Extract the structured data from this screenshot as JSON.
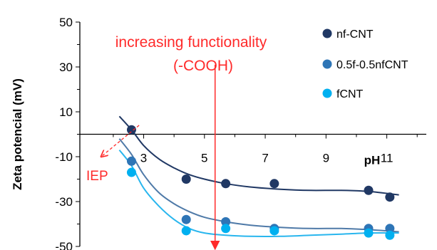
{
  "chart_data": {
    "type": "scatter",
    "ylabel": "Zeta potencial (mV)",
    "xlabel": "pH",
    "xlim": [
      0.9,
      12.3
    ],
    "ylim": [
      -50,
      50
    ],
    "x_axis_crosses_y_at": 0,
    "x_ticks": [
      3,
      5,
      7,
      9,
      11
    ],
    "y_ticks": [
      50,
      30,
      10,
      -10,
      -30,
      -50
    ],
    "grid": false,
    "legend_position": "top-right",
    "series": [
      {
        "name": "nf-CNT",
        "color": "#203864",
        "points": [
          [
            2.6,
            2
          ],
          [
            4.4,
            -20
          ],
          [
            5.7,
            -22
          ],
          [
            7.3,
            -22
          ],
          [
            10.4,
            -25
          ],
          [
            11.1,
            -28
          ]
        ],
        "trend": [
          [
            2.2,
            8
          ],
          [
            2.6,
            2
          ],
          [
            3.0,
            -5
          ],
          [
            3.5,
            -11
          ],
          [
            4.0,
            -15
          ],
          [
            4.5,
            -18
          ],
          [
            5.0,
            -20
          ],
          [
            5.7,
            -22
          ],
          [
            6.5,
            -23.5
          ],
          [
            7.5,
            -24.5
          ],
          [
            8.5,
            -25
          ],
          [
            9.5,
            -25
          ],
          [
            10.4,
            -25.5
          ],
          [
            11.4,
            -27
          ]
        ]
      },
      {
        "name": "0.5f-0.5nfCNT",
        "color": "#2e75b6",
        "points": [
          [
            2.6,
            -12
          ],
          [
            4.4,
            -38
          ],
          [
            5.7,
            -39
          ],
          [
            7.3,
            -42
          ],
          [
            10.4,
            -42
          ],
          [
            11.1,
            -42
          ]
        ],
        "trend": [
          [
            2.2,
            -2
          ],
          [
            2.6,
            -9
          ],
          [
            3.0,
            -18
          ],
          [
            3.5,
            -26
          ],
          [
            4.0,
            -31
          ],
          [
            4.5,
            -34.5
          ],
          [
            5.0,
            -37
          ],
          [
            5.7,
            -39
          ],
          [
            6.5,
            -40.5
          ],
          [
            7.5,
            -41.5
          ],
          [
            8.5,
            -42
          ],
          [
            9.5,
            -42
          ],
          [
            10.4,
            -42.5
          ],
          [
            11.4,
            -43.5
          ]
        ]
      },
      {
        "name": "fCNT",
        "color": "#00b0f0",
        "points": [
          [
            2.6,
            -17
          ],
          [
            4.4,
            -43
          ],
          [
            5.7,
            -42
          ],
          [
            7.3,
            -43
          ],
          [
            10.4,
            -44
          ],
          [
            11.1,
            -45
          ]
        ],
        "trend": [
          [
            2.2,
            -7
          ],
          [
            2.6,
            -14
          ],
          [
            3.0,
            -24
          ],
          [
            3.5,
            -32
          ],
          [
            4.0,
            -38
          ],
          [
            4.5,
            -42
          ],
          [
            5.0,
            -44
          ],
          [
            5.7,
            -45
          ],
          [
            6.5,
            -45.5
          ],
          [
            7.5,
            -45.5
          ],
          [
            8.5,
            -45
          ],
          [
            9.5,
            -44.5
          ],
          [
            10.4,
            -44
          ],
          [
            11.4,
            -44
          ]
        ]
      }
    ],
    "annotations": [
      {
        "text_lines": [
          "increasing functionality",
          "(-COOH)"
        ],
        "color": "#ff2a2a",
        "arrow_from": [
          5.35,
          31
        ],
        "arrow_to": [
          5.35,
          -50
        ]
      },
      {
        "text": "IEP",
        "color": "#ff2a2a",
        "arrow_from": [
          2.85,
          4
        ],
        "arrow_to": [
          1.6,
          -10
        ]
      }
    ]
  }
}
